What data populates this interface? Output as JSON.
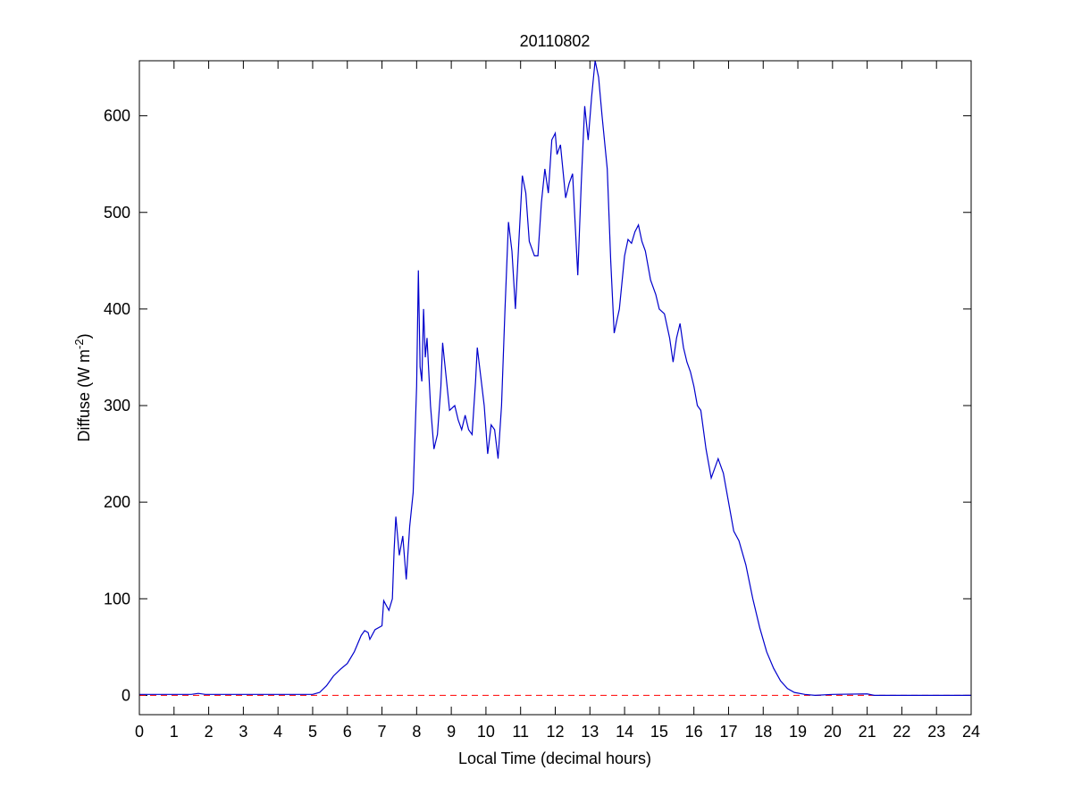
{
  "chart_data": {
    "type": "line",
    "title": "20110802",
    "xlabel": "Local Time (decimal hours)",
    "ylabel": [
      "Diffuse (W m",
      "-2",
      ")"
    ],
    "x": [
      0,
      0.5,
      1,
      1.5,
      1.7,
      1.9,
      2.5,
      3,
      4,
      5,
      5.2,
      5.4,
      5.6,
      5.8,
      6.0,
      6.2,
      6.4,
      6.5,
      6.6,
      6.65,
      6.8,
      7.0,
      7.05,
      7.2,
      7.3,
      7.35,
      7.4,
      7.5,
      7.6,
      7.7,
      7.8,
      7.9,
      8.0,
      8.05,
      8.1,
      8.15,
      8.2,
      8.25,
      8.3,
      8.4,
      8.5,
      8.6,
      8.7,
      8.75,
      8.85,
      8.95,
      9.1,
      9.2,
      9.3,
      9.4,
      9.5,
      9.6,
      9.7,
      9.75,
      9.85,
      9.95,
      10.05,
      10.15,
      10.25,
      10.35,
      10.45,
      10.55,
      10.65,
      10.75,
      10.85,
      10.95,
      11.05,
      11.15,
      11.25,
      11.4,
      11.5,
      11.6,
      11.7,
      11.8,
      11.9,
      12.0,
      12.05,
      12.15,
      12.3,
      12.4,
      12.5,
      12.65,
      12.75,
      12.85,
      12.95,
      13.05,
      13.15,
      13.25,
      13.35,
      13.5,
      13.6,
      13.7,
      13.85,
      14.0,
      14.1,
      14.2,
      14.3,
      14.4,
      14.5,
      14.6,
      14.75,
      14.9,
      15.0,
      15.15,
      15.3,
      15.4,
      15.5,
      15.6,
      15.7,
      15.8,
      15.9,
      16.0,
      16.1,
      16.2,
      16.35,
      16.5,
      16.6,
      16.7,
      16.85,
      17.0,
      17.15,
      17.3,
      17.5,
      17.7,
      17.9,
      18.1,
      18.3,
      18.5,
      18.7,
      18.9,
      19.2,
      19.5,
      20,
      21,
      21.2,
      22,
      23,
      24
    ],
    "series": [
      {
        "name": "Diffuse",
        "color": "#0000cc",
        "values": [
          1,
          1,
          1,
          1,
          2,
          1,
          1,
          1,
          1,
          1,
          3,
          10,
          20,
          27,
          33,
          45,
          62,
          67,
          65,
          58,
          68,
          72,
          98,
          88,
          100,
          150,
          185,
          145,
          165,
          120,
          175,
          210,
          320,
          440,
          340,
          325,
          400,
          350,
          370,
          300,
          255,
          270,
          320,
          365,
          330,
          295,
          300,
          285,
          275,
          290,
          275,
          270,
          325,
          360,
          330,
          300,
          250,
          280,
          275,
          245,
          300,
          400,
          490,
          460,
          400,
          470,
          538,
          520,
          470,
          455,
          455,
          510,
          545,
          520,
          575,
          582,
          560,
          570,
          515,
          530,
          540,
          435,
          530,
          610,
          575,
          620,
          657,
          640,
          600,
          545,
          450,
          375,
          400,
          455,
          472,
          468,
          480,
          487,
          470,
          460,
          430,
          415,
          400,
          395,
          370,
          345,
          370,
          385,
          360,
          345,
          335,
          320,
          300,
          295,
          255,
          225,
          235,
          245,
          230,
          200,
          170,
          160,
          135,
          100,
          70,
          45,
          28,
          15,
          7,
          3,
          1,
          0,
          1,
          1.5,
          0,
          0,
          0,
          0
        ]
      }
    ],
    "reference_line": {
      "y": 0,
      "color": "#ff0000",
      "style": "dashed"
    },
    "xlim": [
      0,
      24
    ],
    "xticks": [
      0,
      1,
      2,
      3,
      4,
      5,
      6,
      7,
      8,
      9,
      10,
      11,
      12,
      13,
      14,
      15,
      16,
      17,
      18,
      19,
      20,
      21,
      22,
      23,
      24
    ],
    "ylim": [
      -20,
      657
    ],
    "yticks": [
      0,
      100,
      200,
      300,
      400,
      500,
      600
    ],
    "grid": false
  }
}
